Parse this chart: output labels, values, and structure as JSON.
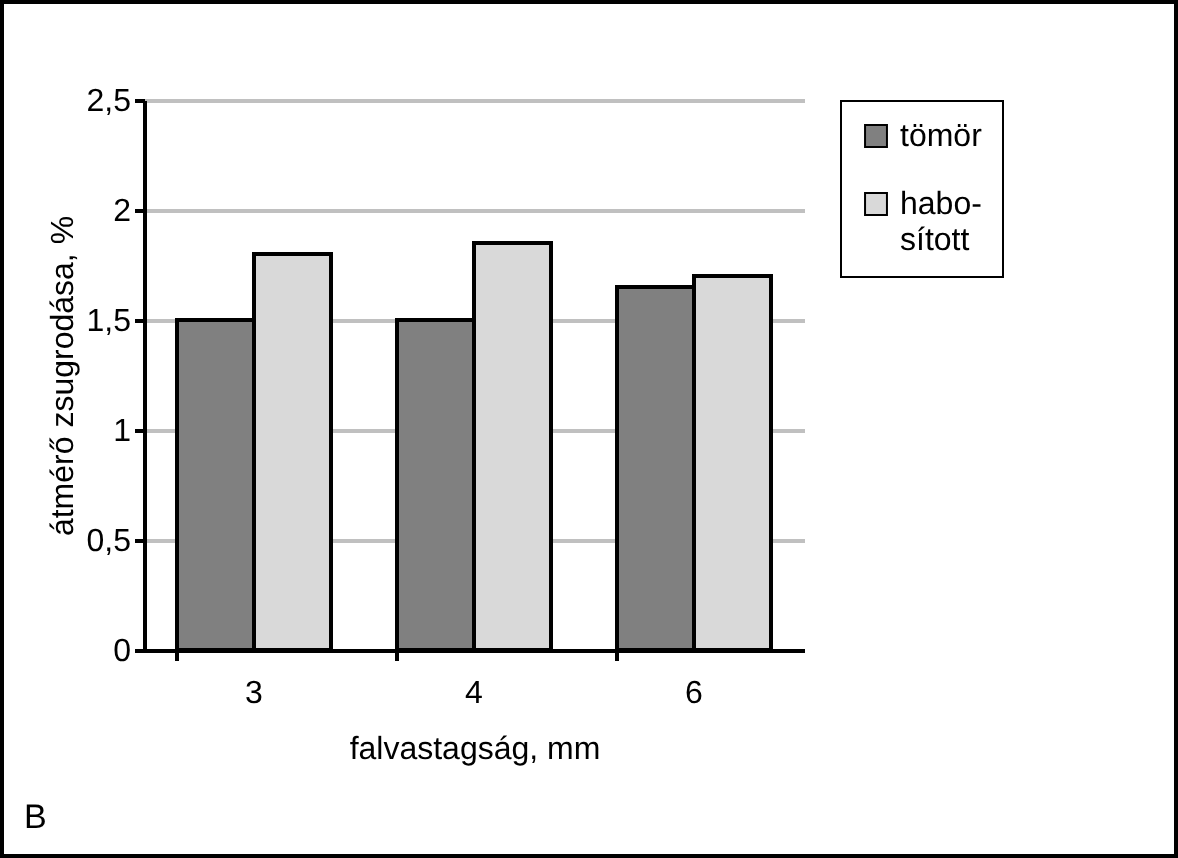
{
  "chart_data": {
    "type": "bar",
    "xlabel": "falvastagság, mm",
    "ylabel": "átmérő zsugrodása, %",
    "categories": [
      "3",
      "4",
      "6"
    ],
    "series": [
      {
        "name": "tömör",
        "color": "#808080",
        "values": [
          1.5,
          1.5,
          1.65
        ]
      },
      {
        "name": "habo-sított",
        "color": "#d9d9d9",
        "values": [
          1.8,
          1.85,
          1.7
        ]
      }
    ],
    "ylim": [
      0,
      2.5
    ],
    "yticks": [
      {
        "value": 0,
        "label": "0"
      },
      {
        "value": 0.5,
        "label": "0,5"
      },
      {
        "value": 1,
        "label": "1"
      },
      {
        "value": 1.5,
        "label": "1,5"
      },
      {
        "value": 2,
        "label": "2"
      },
      {
        "value": 2.5,
        "label": "2,5"
      }
    ],
    "grid": "y",
    "legend": "right",
    "annotations": [
      "B"
    ]
  }
}
